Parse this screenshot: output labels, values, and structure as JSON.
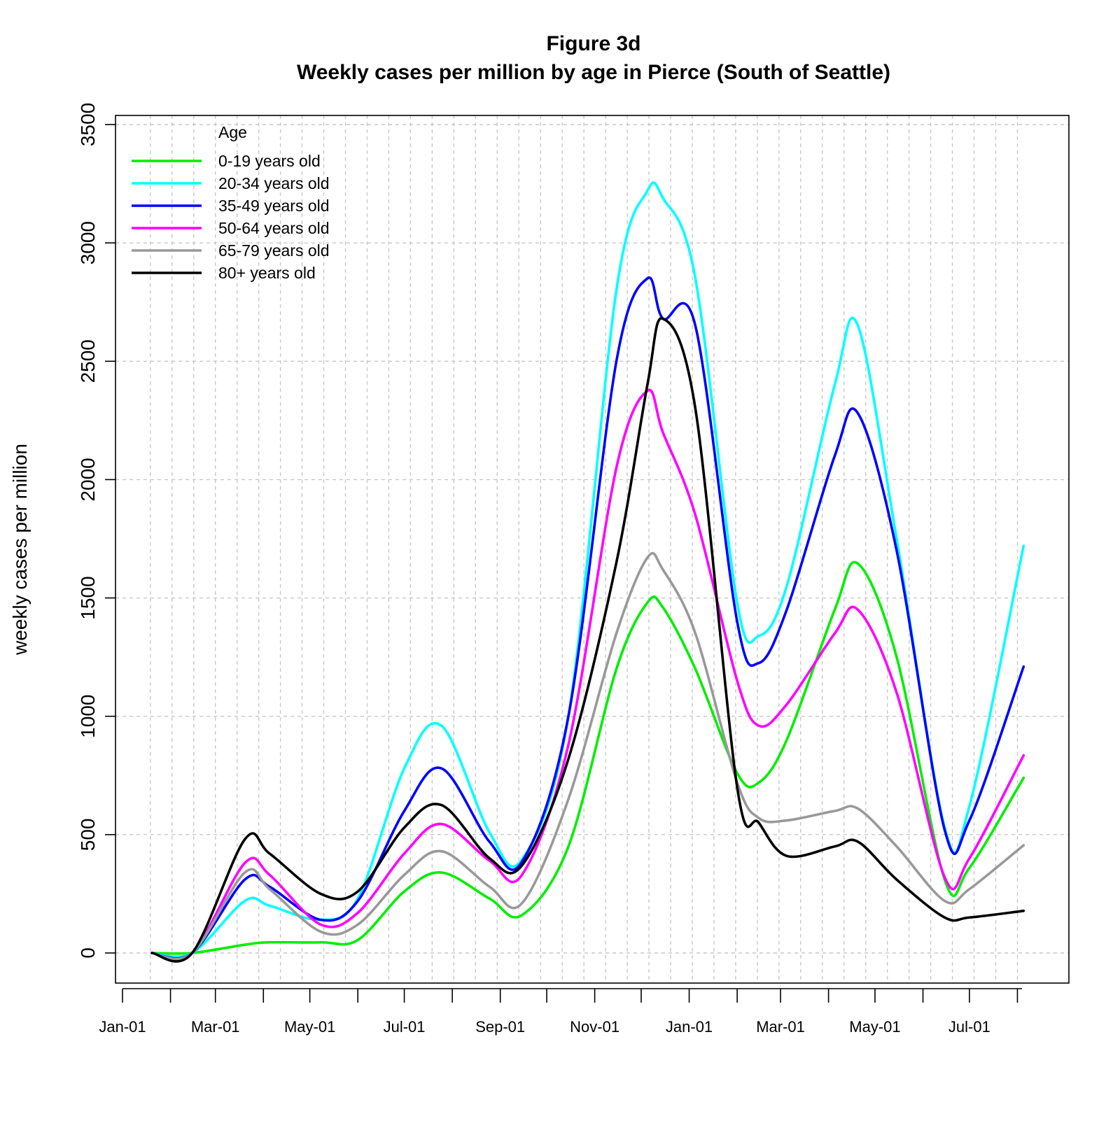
{
  "chart_data": {
    "type": "line",
    "title": "Figure 3d",
    "subtitle": "Weekly cases per million by age in Pierce (South of Seattle)",
    "xlabel": "",
    "ylabel": "weekly cases per million",
    "ylim": [
      0,
      3500
    ],
    "xlim": [
      "2020-01-01",
      "2021-08-13"
    ],
    "y_ticks": [
      0,
      500,
      1000,
      1500,
      2000,
      2500,
      3000,
      3500
    ],
    "x_ticks": [
      {
        "label": "Jan-01",
        "date": "2020-01-01"
      },
      {
        "label": "Mar-01",
        "date": "2020-03-01"
      },
      {
        "label": "May-01",
        "date": "2020-05-01"
      },
      {
        "label": "Jul-01",
        "date": "2020-07-01"
      },
      {
        "label": "Sep-01",
        "date": "2020-09-01"
      },
      {
        "label": "Nov-01",
        "date": "2020-11-01"
      },
      {
        "label": "Jan-01",
        "date": "2021-01-01"
      },
      {
        "label": "Mar-01",
        "date": "2021-03-01"
      },
      {
        "label": "May-01",
        "date": "2021-05-01"
      },
      {
        "label": "Jul-01",
        "date": "2021-07-01"
      }
    ],
    "grid": true,
    "legend": {
      "title": "Age",
      "position": "top-left"
    },
    "x": [
      "2020-01-20",
      "2020-02-15",
      "2020-03-20",
      "2020-04-05",
      "2020-05-08",
      "2020-06-01",
      "2020-07-01",
      "2020-07-25",
      "2020-08-25",
      "2020-09-15",
      "2020-10-15",
      "2020-11-15",
      "2020-12-05",
      "2020-12-15",
      "2021-01-05",
      "2021-02-01",
      "2021-02-15",
      "2021-03-05",
      "2021-04-05",
      "2021-04-20",
      "2021-05-15",
      "2021-06-15",
      "2021-07-01",
      "2021-08-05"
    ],
    "series": [
      {
        "name": "0-19 years old",
        "color": "#00ee00",
        "values": [
          0,
          0,
          35,
          45,
          45,
          55,
          260,
          340,
          230,
          160,
          450,
          1200,
          1480,
          1460,
          1200,
          760,
          720,
          900,
          1450,
          1645,
          1250,
          310,
          360,
          740
        ]
      },
      {
        "name": "20-34 years old",
        "color": "#00ffff",
        "values": [
          0,
          0,
          220,
          200,
          140,
          230,
          780,
          960,
          510,
          395,
          1000,
          2800,
          3220,
          3190,
          2850,
          1480,
          1340,
          1550,
          2400,
          2650,
          1750,
          530,
          620,
          1720
        ]
      },
      {
        "name": "35-49 years old",
        "color": "#0000ff",
        "values": [
          0,
          0,
          310,
          280,
          140,
          220,
          600,
          780,
          470,
          385,
          1000,
          2500,
          2850,
          2680,
          2650,
          1400,
          1225,
          1450,
          2100,
          2280,
          1700,
          520,
          560,
          1210
        ]
      },
      {
        "name": "50-64 years old",
        "color": "#ff00ff",
        "values": [
          0,
          0,
          380,
          330,
          120,
          170,
          420,
          545,
          390,
          330,
          880,
          2050,
          2375,
          2200,
          1850,
          1150,
          960,
          1050,
          1350,
          1450,
          1100,
          320,
          400,
          835
        ]
      },
      {
        "name": "65-79 years old",
        "color": "#999999",
        "values": [
          0,
          0,
          340,
          270,
          90,
          120,
          330,
          430,
          280,
          210,
          650,
          1350,
          1670,
          1620,
          1350,
          720,
          570,
          560,
          600,
          610,
          450,
          220,
          270,
          455
        ]
      },
      {
        "name": "80+ years old",
        "color": "#000000",
        "values": [
          0,
          0,
          480,
          420,
          250,
          260,
          530,
          625,
          400,
          370,
          820,
          1650,
          2400,
          2680,
          2300,
          700,
          550,
          410,
          450,
          470,
          310,
          150,
          150,
          178
        ]
      }
    ]
  }
}
